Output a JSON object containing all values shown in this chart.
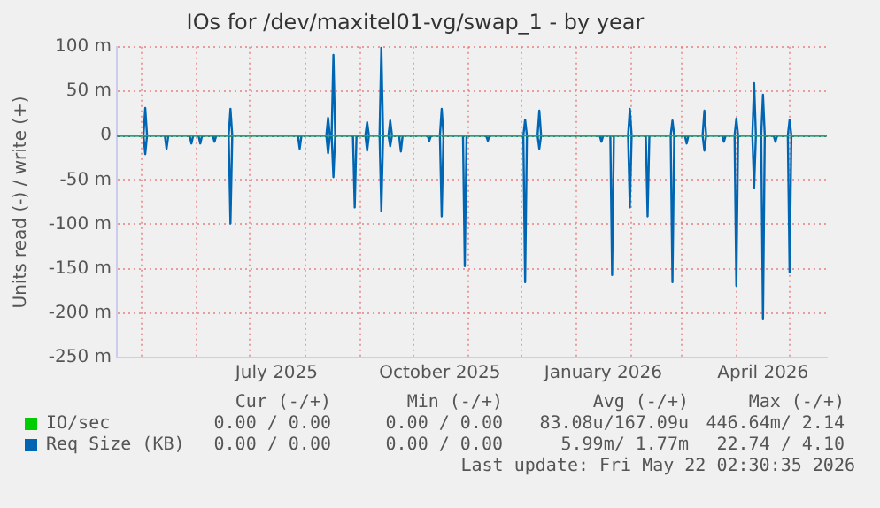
{
  "chart_data": {
    "type": "line",
    "title": "IOs for /dev/maxitel01-vg/swap_1 - by year",
    "ylabel": "Units read (-) / write (+)",
    "x": [
      "2025-04-17",
      "2025-05-02",
      "2025-05-03",
      "2025-05-04",
      "2025-05-14",
      "2025-05-15",
      "2025-05-16",
      "2025-05-28",
      "2025-05-29",
      "2025-05-30",
      "2025-06-02",
      "2025-06-03",
      "2025-06-04",
      "2025-06-10",
      "2025-06-11",
      "2025-06-12",
      "2025-06-19",
      "2025-06-20",
      "2025-06-21",
      "2025-07-28",
      "2025-07-29",
      "2025-07-30",
      "2025-08-13",
      "2025-08-14",
      "2025-08-15",
      "2025-08-16",
      "2025-08-17",
      "2025-08-18",
      "2025-08-28",
      "2025-08-29",
      "2025-08-30",
      "2025-09-04",
      "2025-09-05",
      "2025-09-06",
      "2025-09-12",
      "2025-09-13",
      "2025-09-14",
      "2025-09-17",
      "2025-09-18",
      "2025-09-19",
      "2025-09-23",
      "2025-09-24",
      "2025-09-25",
      "2025-10-09",
      "2025-10-10",
      "2025-10-11",
      "2025-10-16",
      "2025-10-17",
      "2025-10-18",
      "2025-10-29",
      "2025-10-30",
      "2025-10-31",
      "2025-11-11",
      "2025-11-12",
      "2025-11-13",
      "2025-12-02",
      "2025-12-03",
      "2025-12-04",
      "2025-12-10",
      "2025-12-11",
      "2025-12-12",
      "2026-01-14",
      "2026-01-15",
      "2026-01-16",
      "2026-01-20",
      "2026-01-21",
      "2026-01-22",
      "2026-01-30",
      "2026-01-31",
      "2026-02-01",
      "2026-02-09",
      "2026-02-10",
      "2026-02-11",
      "2026-02-23",
      "2026-02-24",
      "2026-02-25",
      "2026-03-03",
      "2026-03-04",
      "2026-03-05",
      "2026-03-13",
      "2026-03-14",
      "2026-03-15",
      "2026-03-24",
      "2026-03-25",
      "2026-03-26",
      "2026-03-31",
      "2026-04-01",
      "2026-04-02",
      "2026-04-10",
      "2026-04-11",
      "2026-04-12",
      "2026-04-15",
      "2026-04-16",
      "2026-04-17",
      "2026-04-22",
      "2026-04-23",
      "2026-04-24",
      "2026-04-30",
      "2026-05-01",
      "2026-05-02",
      "2026-05-22"
    ],
    "series": [
      {
        "name": "IO/sec",
        "color": "#00cc00",
        "values": [
          0,
          0,
          0,
          0,
          0,
          0,
          0,
          0,
          0,
          0,
          0,
          0,
          0,
          0,
          0,
          0,
          0,
          0,
          0,
          0,
          0,
          0,
          0,
          0,
          0,
          0,
          0,
          0,
          0,
          0,
          0,
          0,
          0,
          0,
          0,
          0,
          0,
          0,
          0,
          0,
          0,
          0,
          0,
          0,
          0,
          0,
          0,
          0,
          0,
          0,
          0,
          0,
          0,
          0,
          0,
          0,
          0,
          0,
          0,
          0,
          0,
          0,
          0,
          0,
          0,
          0,
          0,
          0,
          0,
          0,
          0,
          0,
          0,
          0,
          0,
          0,
          0,
          0,
          0,
          0,
          0,
          0,
          0,
          0,
          0,
          0,
          0,
          0,
          0,
          0,
          0,
          0,
          0,
          0,
          0,
          0,
          0,
          0,
          0,
          0,
          0
        ]
      },
      {
        "color": "#0066b3",
        "values": [
          0,
          0,
          -21,
          0,
          0,
          -15,
          0,
          0,
          -9,
          0,
          0,
          -9,
          0,
          0,
          -7,
          0,
          0,
          -99,
          0,
          0,
          -15,
          0,
          0,
          -20,
          0,
          0,
          -47,
          0,
          0,
          -81,
          0,
          0,
          -17,
          0,
          0,
          -85,
          0,
          0,
          -12,
          0,
          0,
          -18,
          0,
          0,
          -6,
          0,
          0,
          -91,
          0,
          0,
          -147,
          0,
          0,
          -6,
          0,
          0,
          -165,
          0,
          0,
          -15,
          0,
          0,
          -7,
          0,
          0,
          -157,
          0,
          0,
          -81,
          0,
          0,
          -91,
          0,
          0,
          -165,
          0,
          0,
          -9,
          0,
          0,
          -17,
          0,
          0,
          -7,
          0,
          0,
          -169,
          0,
          0,
          -59,
          0,
          0,
          -207,
          0,
          0,
          -7,
          0,
          0,
          -154,
          0,
          0
        ]
      },
      {
        "name": "Req Size (KB)",
        "color": "#0066b3",
        "values": [
          0,
          0,
          31,
          0,
          0,
          0,
          0,
          0,
          0,
          0,
          0,
          0,
          0,
          0,
          0,
          0,
          0,
          30,
          0,
          0,
          0,
          0,
          0,
          20,
          0,
          0,
          91,
          0,
          0,
          0,
          0,
          0,
          15,
          0,
          0,
          99,
          0,
          0,
          17,
          0,
          0,
          0,
          0,
          0,
          0,
          0,
          0,
          30,
          0,
          0,
          0,
          0,
          0,
          0,
          0,
          0,
          18,
          0,
          0,
          28,
          0,
          0,
          0,
          0,
          0,
          0,
          0,
          0,
          30,
          0,
          0,
          0,
          0,
          0,
          17,
          0,
          0,
          0,
          0,
          0,
          28,
          0,
          0,
          0,
          0,
          0,
          19,
          0,
          0,
          59,
          0,
          0,
          46,
          0,
          0,
          0,
          0,
          0,
          18,
          0,
          0
        ]
      }
    ],
    "xlim": [
      "2025-04-17",
      "2026-05-22"
    ],
    "xticks": [
      {
        "value": "2025-05-01",
        "label": null
      },
      {
        "value": "2025-06-01",
        "label": null
      },
      {
        "value": "2025-07-01",
        "label": null
      },
      {
        "value": "2025-07-16",
        "label": "July 2025"
      },
      {
        "value": "2025-08-01",
        "label": null
      },
      {
        "value": "2025-09-01",
        "label": null
      },
      {
        "value": "2025-10-01",
        "label": null
      },
      {
        "value": "2025-10-16",
        "label": "October 2025"
      },
      {
        "value": "2025-11-01",
        "label": null
      },
      {
        "value": "2025-12-01",
        "label": null
      },
      {
        "value": "2026-01-01",
        "label": null
      },
      {
        "value": "2026-01-16",
        "label": "January 2026"
      },
      {
        "value": "2026-02-01",
        "label": null
      },
      {
        "value": "2026-03-01",
        "label": null
      },
      {
        "value": "2026-04-01",
        "label": null
      },
      {
        "value": "2026-04-16",
        "label": "April 2026"
      },
      {
        "value": "2026-05-01",
        "label": null
      }
    ],
    "ylim": [
      -250,
      100
    ],
    "yticks": [
      {
        "value": 100,
        "label": "100 m"
      },
      {
        "value": 50,
        "label": "50 m"
      },
      0,
      {
        "value": -50,
        "label": "-50 m"
      },
      {
        "value": -100,
        "label": "-100 m"
      },
      {
        "value": -150,
        "label": "-150 m"
      },
      {
        "value": -200,
        "label": "-200 m"
      },
      {
        "value": -250,
        "label": "-250 m"
      }
    ],
    "grid": true,
    "legend": "bottom",
    "annotations": [
      "Cur (-/+)",
      "Min (-/+)",
      "Avg (-/+)",
      "Max (-/+)",
      "0.00 / 0.00",
      "0.00 / 0.00",
      "83.08u/167.09u",
      "446.64m/ 2.14",
      "0.00 / 0.00",
      "0.00 / 0.00",
      "5.99m/ 1.77m",
      "22.74 / 4.10",
      "Last update: Fri May 22 02:30:35 2026"
    ]
  }
}
